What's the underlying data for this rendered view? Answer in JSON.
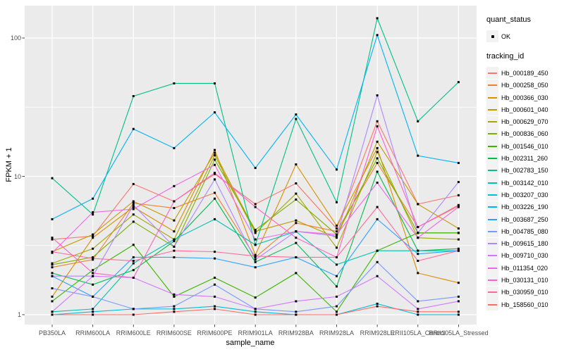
{
  "legend": {
    "quant_status_title": "quant_status",
    "quant_status_value": "OK",
    "tracking_id_title": "tracking_id"
  },
  "chart_data": {
    "type": "line",
    "title": "",
    "xlabel": "sample_name",
    "ylabel": "FPKM + 1",
    "y_scale": "log10",
    "y_ticks": [
      1,
      10,
      100
    ],
    "y_minor_gridlines": [
      3.1623,
      31.623
    ],
    "ylim": [
      0.9,
      170
    ],
    "legend_position": "right",
    "panel_background": "#EBEBEB",
    "grid_color": "#FFFFFF",
    "point_color": "#000000",
    "tick_color": "#333333",
    "categories": [
      "PB350LA",
      "RRIM600LA",
      "RRIM600LE",
      "RRIM600SE",
      "RRIM600PE",
      "RRIM901LA",
      "RRIM928BA",
      "RRIM928LA",
      "RRIM928LE",
      "RRII105LA_Control",
      "RRII105LA_Stressed"
    ],
    "series": [
      {
        "name": "Hb_000189_450",
        "color": "#F8766D",
        "values": [
          3.5,
          3.7,
          8.8,
          6.6,
          10.4,
          6.3,
          8.9,
          4.2,
          25,
          6.3,
          7.3
        ]
      },
      {
        "name": "Hb_000258_050",
        "color": "#EA8331",
        "values": [
          2.2,
          2.5,
          6.4,
          5.9,
          7.6,
          2.6,
          4.6,
          4.0,
          12.5,
          4.3,
          6.1
        ]
      },
      {
        "name": "Hb_000366_030",
        "color": "#D89000",
        "values": [
          1.35,
          3.6,
          6.0,
          4.0,
          15.5,
          2.7,
          12.2,
          4.4,
          16.0,
          2.0,
          1.7
        ]
      },
      {
        "name": "Hb_000601_040",
        "color": "#C09B00",
        "values": [
          2.85,
          3.8,
          6.6,
          4.8,
          14.8,
          4.0,
          4.8,
          3.6,
          17.8,
          6.3,
          4.2
        ]
      },
      {
        "name": "Hb_000629_070",
        "color": "#A3A500",
        "values": [
          2.35,
          3.0,
          5.3,
          3.5,
          14.2,
          3.9,
          7.5,
          3.05,
          15.0,
          3.6,
          3.5
        ]
      },
      {
        "name": "Hb_000836_060",
        "color": "#7CAE00",
        "values": [
          2.3,
          2.6,
          4.7,
          3.1,
          13.2,
          4.1,
          6.8,
          3.8,
          13.5,
          3.9,
          3.9
        ]
      },
      {
        "name": "Hb_001546_010",
        "color": "#39B600",
        "values": [
          1.25,
          2.1,
          3.2,
          1.35,
          1.85,
          1.33,
          2.0,
          1.05,
          2.9,
          3.9,
          3.9
        ]
      },
      {
        "name": "Hb_002311_260",
        "color": "#00BB4E",
        "values": [
          2.0,
          1.65,
          2.1,
          3.4,
          6.9,
          2.4,
          3.3,
          1.6,
          10.8,
          2.9,
          3.0
        ]
      },
      {
        "name": "Hb_002783_150",
        "color": "#00C087",
        "values": [
          9.7,
          5.3,
          38,
          47,
          47,
          3.2,
          26,
          6.5,
          139,
          25,
          48
        ]
      },
      {
        "name": "Hb_003142_010",
        "color": "#00C0B2",
        "values": [
          1.05,
          1.1,
          2.35,
          3.5,
          4.9,
          3.2,
          4.0,
          2.3,
          2.9,
          2.9,
          2.9
        ]
      },
      {
        "name": "Hb_003207_030",
        "color": "#00BCD8",
        "values": [
          1.0,
          1.05,
          1.1,
          1.1,
          1.15,
          1.05,
          1.0,
          1.0,
          1.2,
          1.0,
          1.0
        ]
      },
      {
        "name": "Hb_003226_190",
        "color": "#00B3F3",
        "values": [
          4.9,
          6.9,
          22,
          16,
          29,
          11.5,
          28,
          11.2,
          105,
          14.1,
          12.5
        ]
      },
      {
        "name": "Hb_003687_250",
        "color": "#29A3FF",
        "values": [
          1.9,
          1.35,
          2.6,
          2.6,
          2.55,
          2.2,
          2.6,
          1.9,
          4.9,
          2.75,
          2.9
        ]
      },
      {
        "name": "Hb_004785_080",
        "color": "#7997FF",
        "values": [
          1.55,
          1.35,
          1.1,
          1.15,
          1.65,
          1.1,
          1.05,
          1.15,
          2.4,
          1.25,
          1.35
        ]
      },
      {
        "name": "Hb_009615_180",
        "color": "#AC88FF",
        "values": [
          1.9,
          1.9,
          6.2,
          3.1,
          9.5,
          2.5,
          4.0,
          3.7,
          38.5,
          3.9,
          9.1
        ]
      },
      {
        "name": "Hb_009710_030",
        "color": "#D376FF",
        "values": [
          1.05,
          1.9,
          1.85,
          1.4,
          1.35,
          1.1,
          1.25,
          1.35,
          1.9,
          1.1,
          1.25
        ]
      },
      {
        "name": "Hb_011354_020",
        "color": "#F066EA",
        "values": [
          2.8,
          5.5,
          5.8,
          8.5,
          12.1,
          3.5,
          4.0,
          3.8,
          9.0,
          3.6,
          6.0
        ]
      },
      {
        "name": "Hb_030131_010",
        "color": "#FF61C7",
        "values": [
          3.6,
          2.0,
          1.85,
          6.6,
          10.6,
          6.0,
          3.6,
          2.6,
          23,
          4.3,
          6.2
        ]
      },
      {
        "name": "Hb_030959_010",
        "color": "#FF689E",
        "values": [
          2.85,
          2.55,
          2.45,
          2.9,
          2.85,
          2.65,
          2.6,
          2.6,
          6.0,
          2.45,
          2.9
        ]
      },
      {
        "name": "Hb_158560_010",
        "color": "#FF6C67",
        "values": [
          1.0,
          1.0,
          1.0,
          1.05,
          1.1,
          1.0,
          1.0,
          1.0,
          1.15,
          1.05,
          1.05
        ]
      }
    ]
  }
}
